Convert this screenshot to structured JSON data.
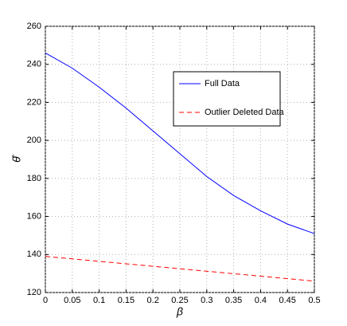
{
  "chart_data": {
    "type": "line",
    "x_label": "β",
    "y_label": "θ̂",
    "x": [
      0,
      0.05,
      0.1,
      0.15,
      0.2,
      0.25,
      0.3,
      0.35,
      0.4,
      0.45,
      0.5
    ],
    "series": [
      {
        "name": "Full Data",
        "color": "#0000ff",
        "dash": "solid",
        "values": [
          246,
          238,
          228,
          217,
          205,
          193,
          181,
          171,
          163,
          156,
          151
        ]
      },
      {
        "name": "Outlier Deleted Data",
        "color": "#ff0000",
        "dash": "dashed",
        "values": [
          139,
          137.7,
          136.4,
          135.1,
          133.8,
          132.5,
          131.2,
          129.9,
          128.6,
          127.3,
          126
        ]
      }
    ],
    "xlim": [
      0,
      0.5
    ],
    "xticks": [
      0,
      0.05,
      0.1,
      0.15,
      0.2,
      0.25,
      0.3,
      0.35,
      0.4,
      0.45,
      0.5
    ],
    "ylim": [
      120,
      260
    ],
    "yticks": [
      120,
      140,
      160,
      180,
      200,
      220,
      240,
      260
    ],
    "grid": true
  }
}
